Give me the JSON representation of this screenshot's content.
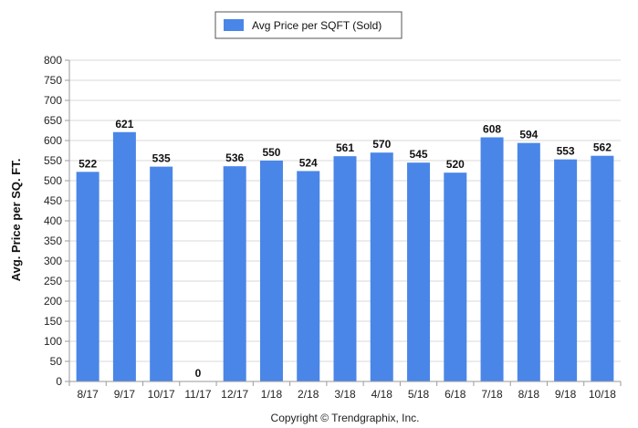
{
  "chart_data": {
    "type": "bar",
    "categories": [
      "8/17",
      "9/17",
      "10/17",
      "11/17",
      "12/17",
      "1/18",
      "2/18",
      "3/18",
      "4/18",
      "5/18",
      "6/18",
      "7/18",
      "8/18",
      "9/18",
      "10/18"
    ],
    "series": [
      {
        "name": "Avg Price per SQFT (Sold)",
        "values": [
          522,
          621,
          535,
          0,
          536,
          550,
          524,
          561,
          570,
          545,
          520,
          608,
          594,
          553,
          562
        ],
        "color": "#4a86e8"
      }
    ],
    "ylabel": "Avg. Price per SQ. FT.",
    "xlabel": "",
    "ylim": [
      0,
      800
    ],
    "yticks": [
      0,
      50,
      100,
      150,
      200,
      250,
      300,
      350,
      400,
      450,
      500,
      550,
      600,
      650,
      700,
      750,
      800
    ],
    "grid": true,
    "legend_position": "top-center"
  },
  "footer": {
    "copyright": "Copyright © Trendgraphix, Inc."
  },
  "colors": {
    "bar": "#4a86e8",
    "grid": "#d9d9d9",
    "axis": "#9a9a9a"
  }
}
